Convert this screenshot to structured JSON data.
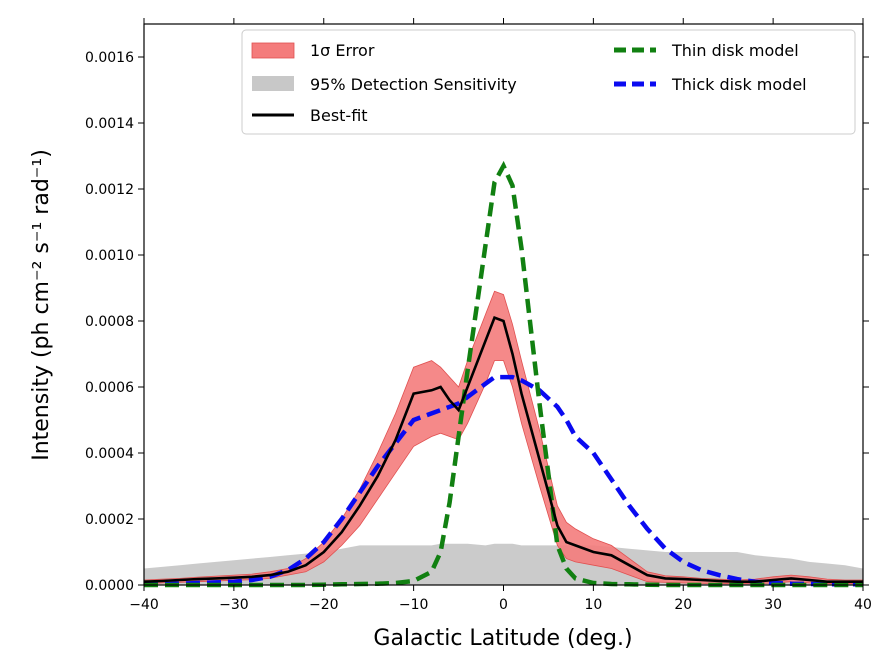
{
  "chart_data": {
    "type": "line",
    "xlabel": "Galactic Latitude (deg.)",
    "ylabel": "Intensity (ph cm⁻² s⁻¹ rad⁻¹)",
    "xlim": [
      -40,
      40
    ],
    "ylim": [
      0,
      0.0017
    ],
    "xticks": [
      -40,
      -30,
      -20,
      -10,
      0,
      10,
      20,
      30,
      40
    ],
    "yticks": [
      "0.0000",
      "0.0002",
      "0.0004",
      "0.0006",
      "0.0008",
      "0.0010",
      "0.0012",
      "0.0014",
      "0.0016"
    ],
    "legend_position": "top",
    "legend": [
      {
        "key": "error",
        "label": "1σ Error"
      },
      {
        "key": "sens",
        "label": "95% Detection Sensitivity"
      },
      {
        "key": "best",
        "label": "Best-fit"
      },
      {
        "key": "thin",
        "label": "Thin disk model"
      },
      {
        "key": "thick",
        "label": "Thick disk model"
      }
    ],
    "colors": {
      "error": "#f47c7c",
      "error_edge": "#e05050",
      "sens": "#c8c8c8",
      "best": "#000000",
      "thin": "#118011",
      "thick": "#0a0af0"
    },
    "x": [
      -40,
      -38,
      -36,
      -34,
      -32,
      -30,
      -28,
      -26,
      -24,
      -22,
      -20,
      -18,
      -16,
      -14,
      -12,
      -10,
      -8,
      -7,
      -6,
      -5,
      -4,
      -2,
      -1,
      0,
      1,
      2,
      4,
      6,
      7,
      8,
      10,
      12,
      14,
      16,
      18,
      20,
      22,
      24,
      26,
      28,
      30,
      32,
      34,
      36,
      38,
      40
    ],
    "series": [
      {
        "name": "Best-fit",
        "key": "best",
        "values": [
          1e-05,
          1.2e-05,
          1.5e-05,
          1.8e-05,
          2e-05,
          2.2e-05,
          2.5e-05,
          3e-05,
          4e-05,
          6e-05,
          0.0001,
          0.00016,
          0.00024,
          0.00033,
          0.00044,
          0.00058,
          0.00059,
          0.0006,
          0.00056,
          0.00053,
          0.0006,
          0.00074,
          0.00081,
          0.0008,
          0.0007,
          0.00058,
          0.00038,
          0.00018,
          0.00013,
          0.00012,
          0.0001,
          9e-05,
          6e-05,
          3e-05,
          2e-05,
          1.8e-05,
          1.5e-05,
          1.2e-05,
          1e-05,
          1e-05,
          1.5e-05,
          2e-05,
          1.5e-05,
          1e-05,
          1e-05,
          1e-05
        ]
      },
      {
        "name": "1σ Error upper",
        "key": "error_upper",
        "values": [
          1.5e-05,
          1.8e-05,
          2e-05,
          2.4e-05,
          2.7e-05,
          3e-05,
          3.3e-05,
          4e-05,
          5e-05,
          8e-05,
          0.00013,
          0.0002,
          0.00029,
          0.0004,
          0.00052,
          0.00066,
          0.00068,
          0.00066,
          0.00063,
          0.0006,
          0.00068,
          0.00082,
          0.00089,
          0.00088,
          0.00079,
          0.00068,
          0.00047,
          0.00024,
          0.00019,
          0.00017,
          0.00014,
          0.00012,
          8e-05,
          4e-05,
          2.8e-05,
          2.5e-05,
          2e-05,
          1.8e-05,
          1.5e-05,
          1.8e-05,
          2.5e-05,
          3e-05,
          2.5e-05,
          1.8e-05,
          1.5e-05,
          1.5e-05
        ]
      },
      {
        "name": "1σ Error lower",
        "key": "error_lower",
        "values": [
          4e-06,
          6e-06,
          8e-06,
          1e-05,
          1.2e-05,
          1.4e-05,
          1.6e-05,
          2e-05,
          3e-05,
          4e-05,
          7e-05,
          0.00012,
          0.00018,
          0.00026,
          0.00034,
          0.00042,
          0.00045,
          0.00046,
          0.00045,
          0.00044,
          0.00049,
          0.00061,
          0.00068,
          0.00068,
          0.0006,
          0.00049,
          0.0003,
          0.00012,
          8e-05,
          7e-05,
          6e-05,
          5e-05,
          3e-05,
          1e-05,
          8e-06,
          6e-06,
          5e-06,
          4e-06,
          4e-06,
          4e-06,
          6e-06,
          1e-05,
          6e-06,
          4e-06,
          4e-06,
          4e-06
        ]
      },
      {
        "name": "95% Detection Sensitivity",
        "key": "sens",
        "values": [
          5e-05,
          5.5e-05,
          6e-05,
          6.5e-05,
          7e-05,
          7.5e-05,
          8e-05,
          8.5e-05,
          9e-05,
          9.5e-05,
          0.0001,
          0.00011,
          0.00012,
          0.00012,
          0.00012,
          0.00012,
          0.00012,
          0.000125,
          0.000125,
          0.000125,
          0.000125,
          0.00012,
          0.000125,
          0.000125,
          0.000125,
          0.00012,
          0.00012,
          0.00012,
          0.00012,
          0.00012,
          0.00012,
          0.000115,
          0.00011,
          0.000105,
          0.0001,
          0.0001,
          0.0001,
          0.0001,
          0.0001,
          9e-05,
          8.5e-05,
          8e-05,
          7e-05,
          6.5e-05,
          6e-05,
          5e-05
        ]
      },
      {
        "name": "Thin disk model",
        "key": "thin",
        "values": [
          0,
          0,
          0,
          0,
          0,
          0,
          0,
          0,
          0,
          0,
          1e-06,
          2e-06,
          3e-06,
          4e-06,
          6e-06,
          1.2e-05,
          4e-05,
          0.0001,
          0.00025,
          0.00045,
          0.00065,
          0.00103,
          0.00122,
          0.00127,
          0.00121,
          0.00102,
          0.00055,
          0.00012,
          5e-05,
          2e-05,
          6e-06,
          3e-06,
          2e-06,
          1e-06,
          0,
          0,
          0,
          0,
          0,
          0,
          0,
          0,
          0,
          0,
          0,
          0
        ]
      },
      {
        "name": "Thick disk model",
        "key": "thick",
        "values": [
          2e-06,
          3e-06,
          4e-06,
          6e-06,
          8e-06,
          1e-05,
          1.5e-05,
          2.5e-05,
          4.5e-05,
          8e-05,
          0.00013,
          0.0002,
          0.00028,
          0.00036,
          0.00043,
          0.0005,
          0.00052,
          0.00053,
          0.00054,
          0.00055,
          0.00057,
          0.00061,
          0.00063,
          0.00063,
          0.00063,
          0.00062,
          0.00059,
          0.00054,
          0.0005,
          0.00045,
          0.0004,
          0.00032,
          0.00024,
          0.00017,
          0.00011,
          7e-05,
          4.5e-05,
          3e-05,
          1.8e-05,
          1e-05,
          6e-06,
          4e-06,
          3e-06,
          2e-06,
          2e-06,
          2e-06
        ]
      }
    ]
  }
}
